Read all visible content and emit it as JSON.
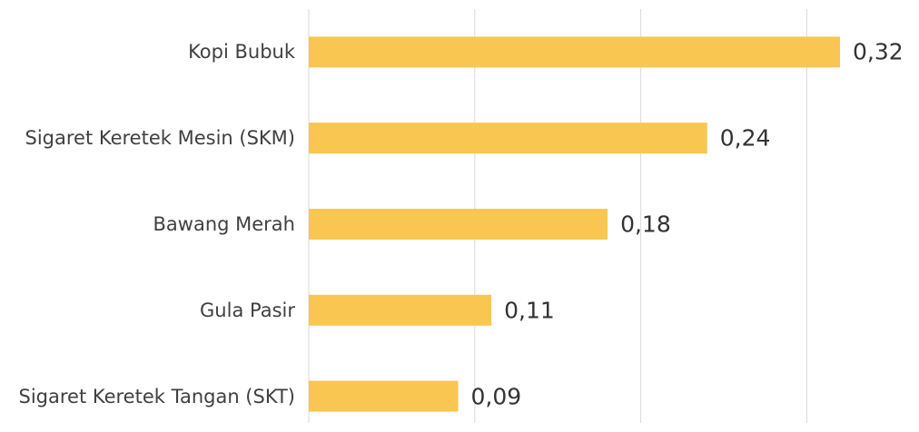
{
  "chart_data": {
    "type": "bar",
    "orientation": "horizontal",
    "categories": [
      "Kopi Bubuk",
      "Sigaret Keretek Mesin (SKM)",
      "Bawang Merah",
      "Gula Pasir",
      "Sigaret Keretek Tangan (SKT)"
    ],
    "values": [
      0.32,
      0.24,
      0.18,
      0.11,
      0.09
    ],
    "value_labels": [
      "0,32",
      "0,24",
      "0,18",
      "0,11",
      "0,09"
    ],
    "color": "#f9c652",
    "xlim": [
      0,
      0.32
    ],
    "xticks": [
      0,
      0.1,
      0.2,
      0.3
    ],
    "grid": true
  }
}
